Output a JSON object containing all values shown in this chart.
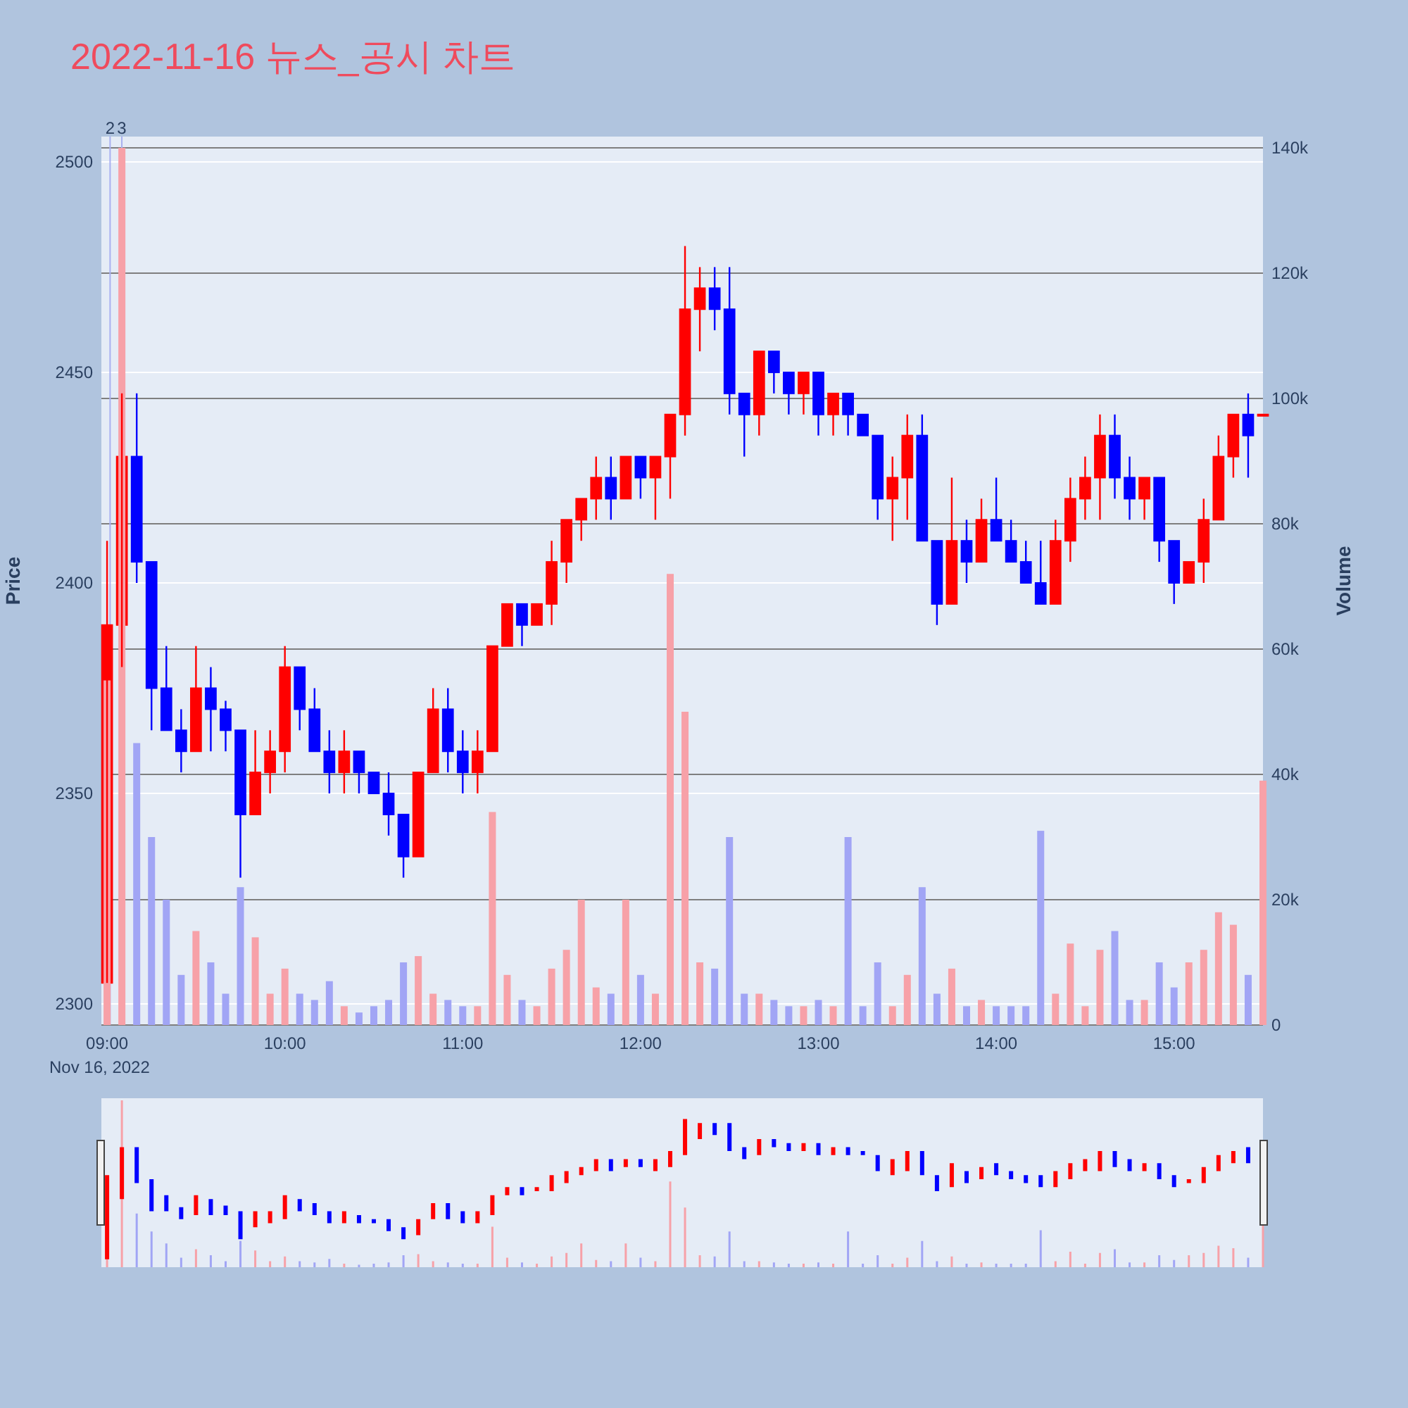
{
  "chart_data": {
    "type": "candlestick",
    "title": "2022-11-16 뉴스_공시 차트",
    "ylabel": "Price",
    "y2label": "Volume",
    "x": [
      9,
      9.0833,
      9.1667,
      9.25,
      9.3333,
      9.4167,
      9.5,
      9.5833,
      9.6667,
      9.75,
      9.8333,
      9.9167,
      10,
      10.0833,
      10.1667,
      10.25,
      10.3333,
      10.4167,
      10.5,
      10.5833,
      10.6667,
      10.75,
      10.8333,
      10.9167,
      11,
      11.0833,
      11.1667,
      11.25,
      11.3333,
      11.4167,
      11.5,
      11.5833,
      11.6667,
      11.75,
      11.8333,
      11.9167,
      12,
      12.0833,
      12.1667,
      12.25,
      12.3333,
      12.4167,
      12.5,
      12.5833,
      12.6667,
      12.75,
      12.8333,
      12.9167,
      13,
      13.0833,
      13.1667,
      13.25,
      13.3333,
      13.4167,
      13.5,
      13.5833,
      13.6667,
      13.75,
      13.8333,
      13.9167,
      14,
      14.0833,
      14.1667,
      14.25,
      14.3333,
      14.4167,
      14.5,
      14.5833,
      14.6667,
      14.75,
      14.8333,
      14.9167,
      15,
      15.0833,
      15.1667,
      15.25,
      15.3333,
      15.4167,
      15.5
    ],
    "ohlc": [
      [
        2305,
        2410,
        2305,
        2390
      ],
      [
        2390,
        2445,
        2380,
        2430
      ],
      [
        2430,
        2445,
        2400,
        2405
      ],
      [
        2405,
        2405,
        2365,
        2375
      ],
      [
        2375,
        2385,
        2365,
        2365
      ],
      [
        2365,
        2370,
        2355,
        2360
      ],
      [
        2360,
        2385,
        2360,
        2375
      ],
      [
        2375,
        2380,
        2360,
        2370
      ],
      [
        2370,
        2372,
        2360,
        2365
      ],
      [
        2365,
        2365,
        2330,
        2345
      ],
      [
        2345,
        2365,
        2345,
        2355
      ],
      [
        2355,
        2365,
        2350,
        2360
      ],
      [
        2360,
        2385,
        2355,
        2380
      ],
      [
        2380,
        2380,
        2365,
        2370
      ],
      [
        2370,
        2375,
        2360,
        2360
      ],
      [
        2360,
        2365,
        2350,
        2355
      ],
      [
        2355,
        2365,
        2350,
        2360
      ],
      [
        2360,
        2360,
        2350,
        2355
      ],
      [
        2355,
        2355,
        2350,
        2350
      ],
      [
        2350,
        2355,
        2340,
        2345
      ],
      [
        2345,
        2345,
        2330,
        2335
      ],
      [
        2335,
        2355,
        2335,
        2355
      ],
      [
        2355,
        2375,
        2355,
        2370
      ],
      [
        2370,
        2375,
        2355,
        2360
      ],
      [
        2360,
        2365,
        2350,
        2355
      ],
      [
        2355,
        2365,
        2350,
        2360
      ],
      [
        2360,
        2385,
        2360,
        2385
      ],
      [
        2385,
        2395,
        2385,
        2395
      ],
      [
        2395,
        2395,
        2385,
        2390
      ],
      [
        2390,
        2395,
        2390,
        2395
      ],
      [
        2395,
        2410,
        2390,
        2405
      ],
      [
        2405,
        2415,
        2400,
        2415
      ],
      [
        2415,
        2420,
        2410,
        2420
      ],
      [
        2420,
        2430,
        2415,
        2425
      ],
      [
        2425,
        2430,
        2415,
        2420
      ],
      [
        2420,
        2430,
        2420,
        2430
      ],
      [
        2430,
        2430,
        2420,
        2425
      ],
      [
        2425,
        2430,
        2415,
        2430
      ],
      [
        2430,
        2440,
        2420,
        2440
      ],
      [
        2440,
        2480,
        2435,
        2465
      ],
      [
        2465,
        2475,
        2455,
        2470
      ],
      [
        2470,
        2475,
        2460,
        2465
      ],
      [
        2465,
        2475,
        2440,
        2445
      ],
      [
        2445,
        2445,
        2430,
        2440
      ],
      [
        2440,
        2455,
        2435,
        2455
      ],
      [
        2455,
        2455,
        2445,
        2450
      ],
      [
        2450,
        2450,
        2440,
        2445
      ],
      [
        2445,
        2450,
        2440,
        2450
      ],
      [
        2450,
        2450,
        2435,
        2440
      ],
      [
        2440,
        2445,
        2435,
        2445
      ],
      [
        2445,
        2445,
        2435,
        2440
      ],
      [
        2440,
        2440,
        2435,
        2435
      ],
      [
        2435,
        2435,
        2415,
        2420
      ],
      [
        2420,
        2430,
        2410,
        2425
      ],
      [
        2425,
        2440,
        2415,
        2435
      ],
      [
        2435,
        2440,
        2410,
        2410
      ],
      [
        2410,
        2410,
        2390,
        2395
      ],
      [
        2395,
        2425,
        2395,
        2410
      ],
      [
        2410,
        2415,
        2400,
        2405
      ],
      [
        2405,
        2420,
        2405,
        2415
      ],
      [
        2415,
        2425,
        2410,
        2410
      ],
      [
        2410,
        2415,
        2405,
        2405
      ],
      [
        2405,
        2410,
        2400,
        2400
      ],
      [
        2400,
        2410,
        2395,
        2395
      ],
      [
        2395,
        2415,
        2395,
        2410
      ],
      [
        2410,
        2425,
        2405,
        2420
      ],
      [
        2420,
        2430,
        2415,
        2425
      ],
      [
        2425,
        2440,
        2415,
        2435
      ],
      [
        2435,
        2440,
        2420,
        2425
      ],
      [
        2425,
        2430,
        2415,
        2420
      ],
      [
        2420,
        2425,
        2415,
        2425
      ],
      [
        2425,
        2425,
        2405,
        2410
      ],
      [
        2410,
        2410,
        2395,
        2400
      ],
      [
        2400,
        2405,
        2400,
        2405
      ],
      [
        2405,
        2420,
        2400,
        2415
      ],
      [
        2415,
        2435,
        2415,
        2430
      ],
      [
        2430,
        2440,
        2425,
        2440
      ],
      [
        2440,
        2445,
        2425,
        2435
      ],
      [
        2440,
        2440,
        2440,
        2440
      ]
    ],
    "colors": [
      "#ff0000",
      "#ff0000",
      "#0000ff",
      "#0000ff",
      "#0000ff",
      "#0000ff",
      "#ff0000",
      "#0000ff",
      "#0000ff",
      "#0000ff",
      "#ff0000",
      "#ff0000",
      "#ff0000",
      "#0000ff",
      "#0000ff",
      "#0000ff",
      "#ff0000",
      "#0000ff",
      "#0000ff",
      "#0000ff",
      "#0000ff",
      "#ff0000",
      "#ff0000",
      "#0000ff",
      "#0000ff",
      "#ff0000",
      "#ff0000",
      "#ff0000",
      "#0000ff",
      "#ff0000",
      "#ff0000",
      "#ff0000",
      "#ff0000",
      "#ff0000",
      "#0000ff",
      "#ff0000",
      "#0000ff",
      "#ff0000",
      "#ff0000",
      "#ff0000",
      "#ff0000",
      "#0000ff",
      "#0000ff",
      "#0000ff",
      "#ff0000",
      "#0000ff",
      "#0000ff",
      "#ff0000",
      "#0000ff",
      "#ff0000",
      "#0000ff",
      "#0000ff",
      "#0000ff",
      "#ff0000",
      "#ff0000",
      "#0000ff",
      "#0000ff",
      "#ff0000",
      "#0000ff",
      "#ff0000",
      "#0000ff",
      "#0000ff",
      "#0000ff",
      "#0000ff",
      "#ff0000",
      "#ff0000",
      "#ff0000",
      "#ff0000",
      "#0000ff",
      "#0000ff",
      "#ff0000",
      "#0000ff",
      "#0000ff",
      "#ff0000",
      "#ff0000",
      "#ff0000",
      "#ff0000",
      "#0000ff",
      "#ff0000"
    ],
    "series": [
      {
        "type": "bar",
        "axis": "y2",
        "values": [
          55000,
          140000,
          45000,
          30000,
          20000,
          8000,
          15000,
          10000,
          5000,
          22000,
          14000,
          5000,
          9000,
          5000,
          4000,
          7000,
          3000,
          2000,
          3000,
          4000,
          10000,
          11000,
          5000,
          4000,
          3000,
          3000,
          34000,
          8000,
          4000,
          3000,
          9000,
          12000,
          20000,
          6000,
          5000,
          20000,
          8000,
          5000,
          72000,
          50000,
          10000,
          9000,
          30000,
          5000,
          5000,
          4000,
          3000,
          3000,
          4000,
          3000,
          30000,
          3000,
          10000,
          3000,
          8000,
          22000,
          5000,
          9000,
          3000,
          4000,
          3000,
          3000,
          3000,
          31000,
          5000,
          13000,
          3000,
          12000,
          15000,
          4000,
          4000,
          10000,
          6000,
          10000,
          12000,
          18000,
          16000,
          8000,
          39000
        ],
        "colors": [
          "#f7a1a8",
          "#f7a1a8",
          "#a1a5f5",
          "#a1a5f5",
          "#a1a5f5",
          "#a1a5f5",
          "#f7a1a8",
          "#a1a5f5",
          "#a1a5f5",
          "#a1a5f5",
          "#f7a1a8",
          "#f7a1a8",
          "#f7a1a8",
          "#a1a5f5",
          "#a1a5f5",
          "#a1a5f5",
          "#f7a1a8",
          "#a1a5f5",
          "#a1a5f5",
          "#a1a5f5",
          "#a1a5f5",
          "#f7a1a8",
          "#f7a1a8",
          "#a1a5f5",
          "#a1a5f5",
          "#f7a1a8",
          "#f7a1a8",
          "#f7a1a8",
          "#a1a5f5",
          "#f7a1a8",
          "#f7a1a8",
          "#f7a1a8",
          "#f7a1a8",
          "#f7a1a8",
          "#a1a5f5",
          "#f7a1a8",
          "#a1a5f5",
          "#f7a1a8",
          "#f7a1a8",
          "#f7a1a8",
          "#f7a1a8",
          "#a1a5f5",
          "#a1a5f5",
          "#a1a5f5",
          "#f7a1a8",
          "#a1a5f5",
          "#a1a5f5",
          "#f7a1a8",
          "#a1a5f5",
          "#f7a1a8",
          "#a1a5f5",
          "#a1a5f5",
          "#a1a5f5",
          "#f7a1a8",
          "#f7a1a8",
          "#a1a5f5",
          "#a1a5f5",
          "#f7a1a8",
          "#a1a5f5",
          "#f7a1a8",
          "#a1a5f5",
          "#a1a5f5",
          "#a1a5f5",
          "#a1a5f5",
          "#f7a1a8",
          "#f7a1a8",
          "#f7a1a8",
          "#f7a1a8",
          "#a1a5f5",
          "#a1a5f5",
          "#f7a1a8",
          "#a1a5f5",
          "#a1a5f5",
          "#f7a1a8",
          "#f7a1a8",
          "#f7a1a8",
          "#f7a1a8",
          "#a1a5f5",
          "#f7a1a8"
        ]
      }
    ],
    "xlim": [
      8.968,
      15.5
    ],
    "xticks": [
      {
        "value": 9,
        "label": "09:00"
      },
      {
        "value": 10,
        "label": "10:00"
      },
      {
        "value": 11,
        "label": "11:00"
      },
      {
        "value": 12,
        "label": "12:00"
      },
      {
        "value": 13,
        "label": "13:00"
      },
      {
        "value": 14,
        "label": "14:00"
      },
      {
        "value": 15,
        "label": "15:00"
      }
    ],
    "ylim": [
      2295,
      2506
    ],
    "yticks": [
      2300,
      2350,
      2400,
      2450,
      2500
    ],
    "y2lim": [
      0,
      141800
    ],
    "y2ticks": [
      0,
      {
        "value": 20000,
        "label": "20k"
      },
      {
        "value": 40000,
        "label": "40k"
      },
      {
        "value": 60000,
        "label": "60k"
      },
      {
        "value": 80000,
        "label": "80k"
      },
      {
        "value": 100000,
        "label": "100k"
      },
      {
        "value": 120000,
        "label": "120k"
      },
      {
        "value": 140000,
        "label": "140k"
      }
    ],
    "grid": "y",
    "ref_lines": [
      {
        "axis": "x",
        "value": 9.017,
        "color": "#a8b0f0"
      },
      {
        "axis": "x",
        "value": 9.083,
        "color": "#a8b0f0"
      }
    ],
    "annotations": [
      {
        "text": "2",
        "x": 9.017,
        "y": 2506
      },
      {
        "text": "3",
        "x": 9.083,
        "y": 2506
      },
      "Nov 16, 2022"
    ]
  }
}
